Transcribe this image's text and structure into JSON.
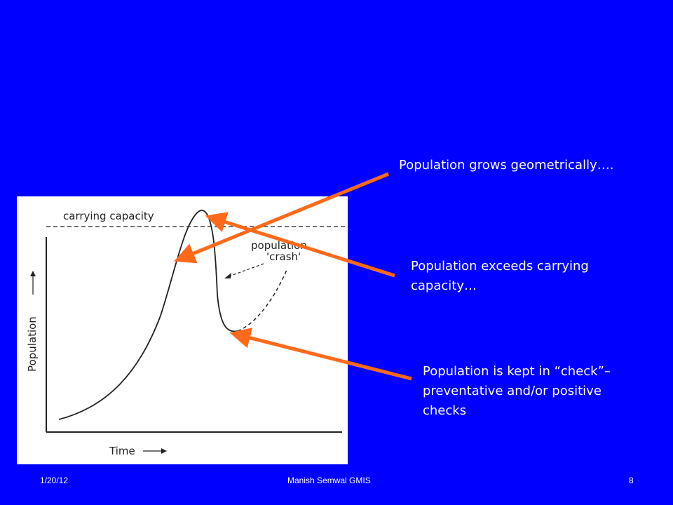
{
  "figure": {
    "carrying_capacity_label": "carrying capacity",
    "crash_label_line1": "population",
    "crash_label_line2": "'crash'",
    "y_axis_label": "Population",
    "x_axis_label": "Time"
  },
  "annotations": {
    "grows": "Population grows geometrically….",
    "exceeds_line1": "Population exceeds carrying",
    "exceeds_line2": "capacity…",
    "check_line1": "Population is kept in “check”–",
    "check_line2": "preventative and/or positive",
    "check_line3": "checks"
  },
  "footer": {
    "date": "1/20/12",
    "author": "Manish Semwal GMIS",
    "page": "8"
  },
  "colors": {
    "background": "#0000ff",
    "arrow": "#ff6a1a",
    "text": "#ffffff"
  }
}
